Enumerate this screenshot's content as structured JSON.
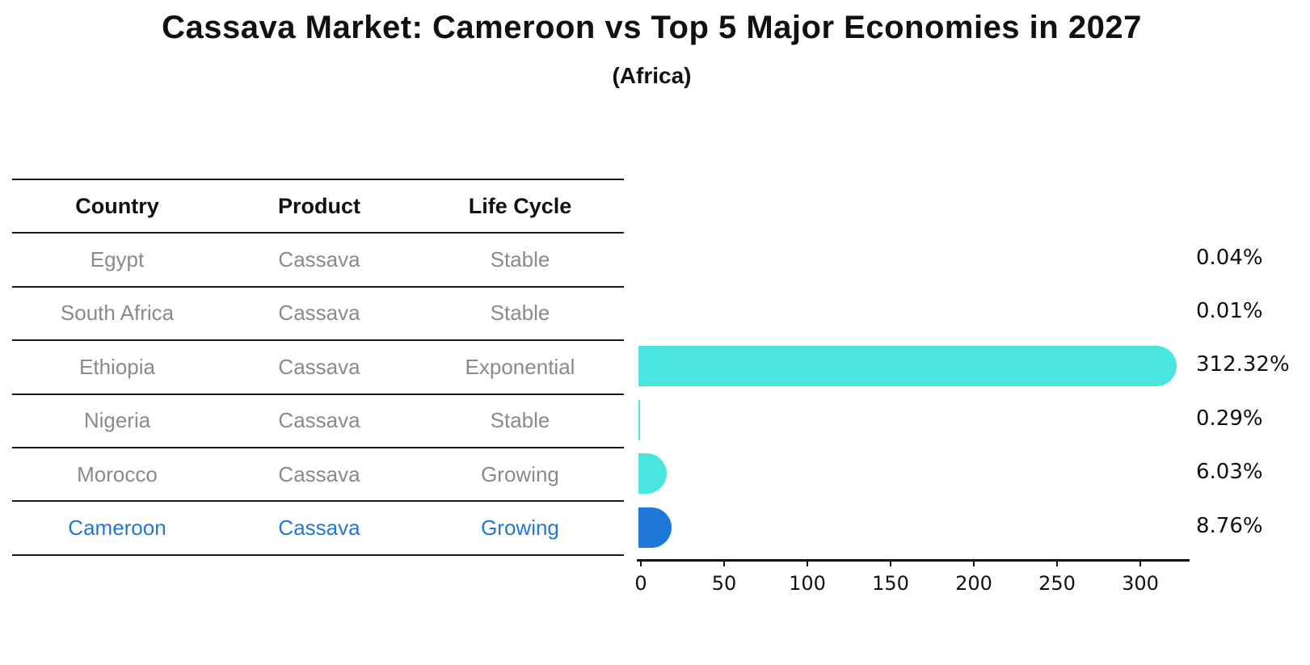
{
  "title": "Cassava Market: Cameroon vs Top 5 Major Economies in 2027",
  "subtitle": "(Africa)",
  "table": {
    "headers": [
      "Country",
      "Product",
      "Life Cycle"
    ],
    "rows": [
      {
        "country": "Egypt",
        "product": "Cassava",
        "life_cycle": "Stable",
        "highlight": false
      },
      {
        "country": "South Africa",
        "product": "Cassava",
        "life_cycle": "Stable",
        "highlight": false
      },
      {
        "country": "Ethiopia",
        "product": "Cassava",
        "life_cycle": "Exponential",
        "highlight": false
      },
      {
        "country": "Nigeria",
        "product": "Cassava",
        "life_cycle": "Stable",
        "highlight": false
      },
      {
        "country": "Morocco",
        "product": "Cassava",
        "life_cycle": "Growing",
        "highlight": false
      },
      {
        "country": "Cameroon",
        "product": "Cassava",
        "life_cycle": "Growing",
        "highlight": true
      }
    ]
  },
  "chart_data": {
    "type": "bar",
    "orientation": "horizontal",
    "title": "Cassava Market: Cameroon vs Top 5 Major Economies in 2027",
    "subtitle": "(Africa)",
    "categories": [
      "Egypt",
      "South Africa",
      "Ethiopia",
      "Nigeria",
      "Morocco",
      "Cameroon"
    ],
    "values": [
      0.04,
      0.01,
      312.32,
      0.29,
      6.03,
      8.76
    ],
    "value_labels": [
      "0.04%",
      "0.01%",
      "312.32%",
      "0.29%",
      "6.03%",
      "8.76%"
    ],
    "x_ticks": [
      0,
      50,
      100,
      150,
      200,
      250,
      300
    ],
    "xlim": [
      0,
      330
    ],
    "xlabel": "",
    "ylabel": "",
    "grid": false,
    "legend": "none",
    "bar_color_default": "#4AE5DE",
    "bar_color_highlight": "#1E78D7",
    "highlight_index": 5
  },
  "colors": {
    "cyan_bar": "#4AE5DE",
    "blue_highlight": "#1E78D7",
    "row_text_gray": "#8a8a8a",
    "text_black": "#111111"
  }
}
